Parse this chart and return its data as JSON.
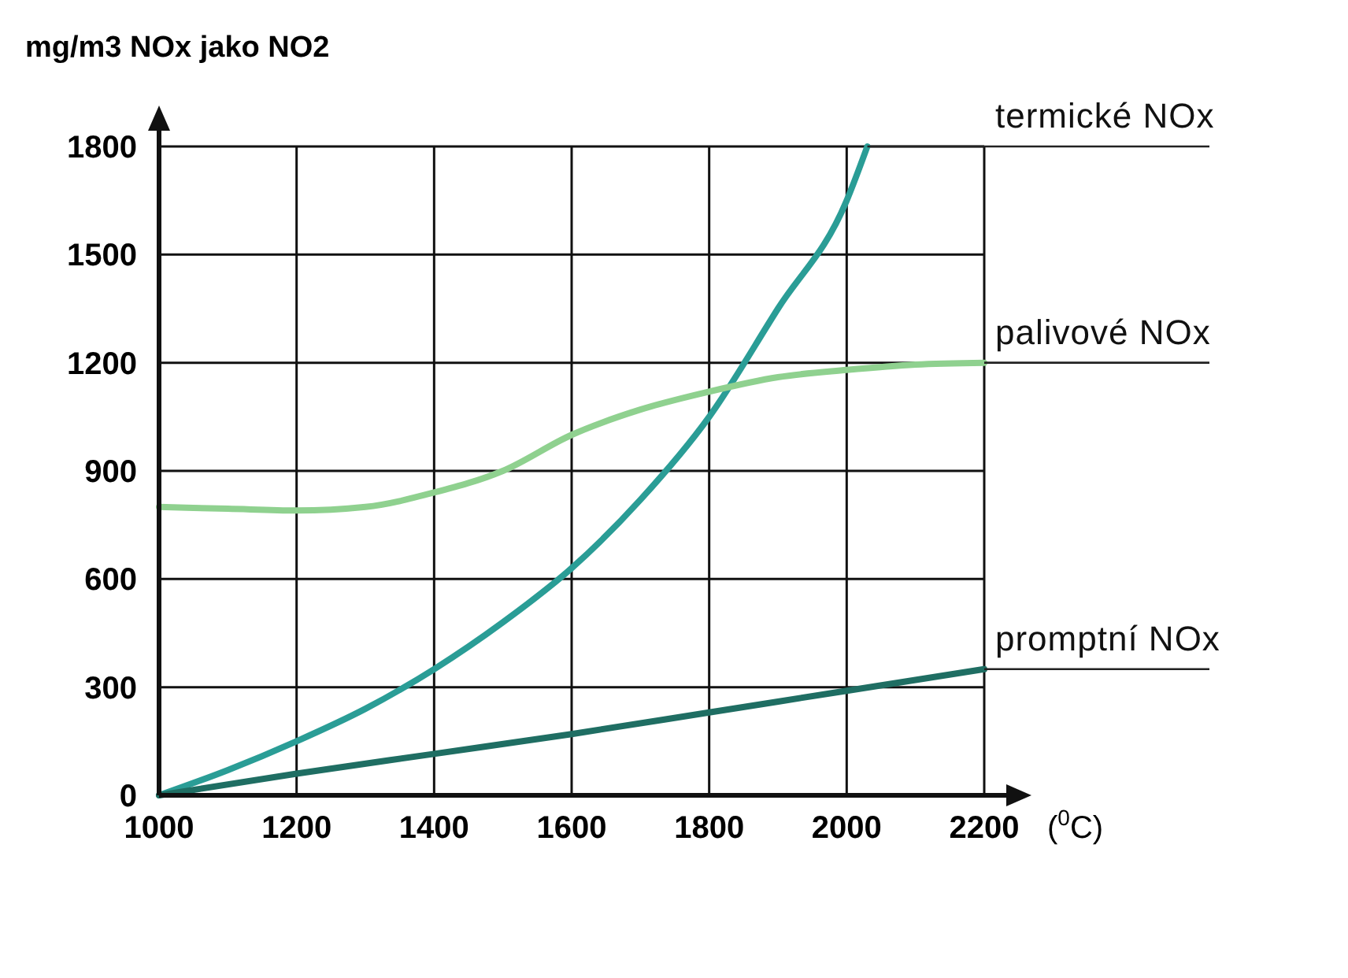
{
  "chart_data": {
    "type": "line",
    "ylabel": "mg/m3 NOx jako NO2",
    "xlabel": "($^{0}$C)",
    "xlim": [
      1000,
      2200
    ],
    "ylim": [
      0,
      1800
    ],
    "xticks": [
      1000,
      1200,
      1400,
      1600,
      1800,
      2000,
      2200
    ],
    "yticks": [
      0,
      300,
      600,
      900,
      1200,
      1500,
      1800
    ],
    "grid": true,
    "legend": false,
    "marker": "none",
    "line_style": "solid",
    "series": [
      {
        "name": "termické NOx",
        "color": "#2a9d96",
        "x": [
          1000,
          1100,
          1200,
          1300,
          1400,
          1500,
          1600,
          1700,
          1800,
          1900,
          2000,
          2030
        ],
        "values": [
          0,
          70,
          150,
          240,
          350,
          480,
          630,
          820,
          1050,
          1350,
          1650,
          1800
        ]
      },
      {
        "name": "palivové NOx",
        "color": "#8fd18f",
        "x": [
          1000,
          1100,
          1200,
          1300,
          1400,
          1500,
          1600,
          1700,
          1800,
          1900,
          2000,
          2100,
          2200
        ],
        "values": [
          800,
          795,
          790,
          800,
          840,
          900,
          1000,
          1070,
          1120,
          1160,
          1180,
          1195,
          1200
        ]
      },
      {
        "name": "promptní NOx",
        "color": "#1f6e63",
        "x": [
          1000,
          1200,
          1400,
          1600,
          1800,
          2000,
          2200
        ],
        "values": [
          0,
          60,
          115,
          170,
          230,
          290,
          350
        ]
      }
    ]
  }
}
